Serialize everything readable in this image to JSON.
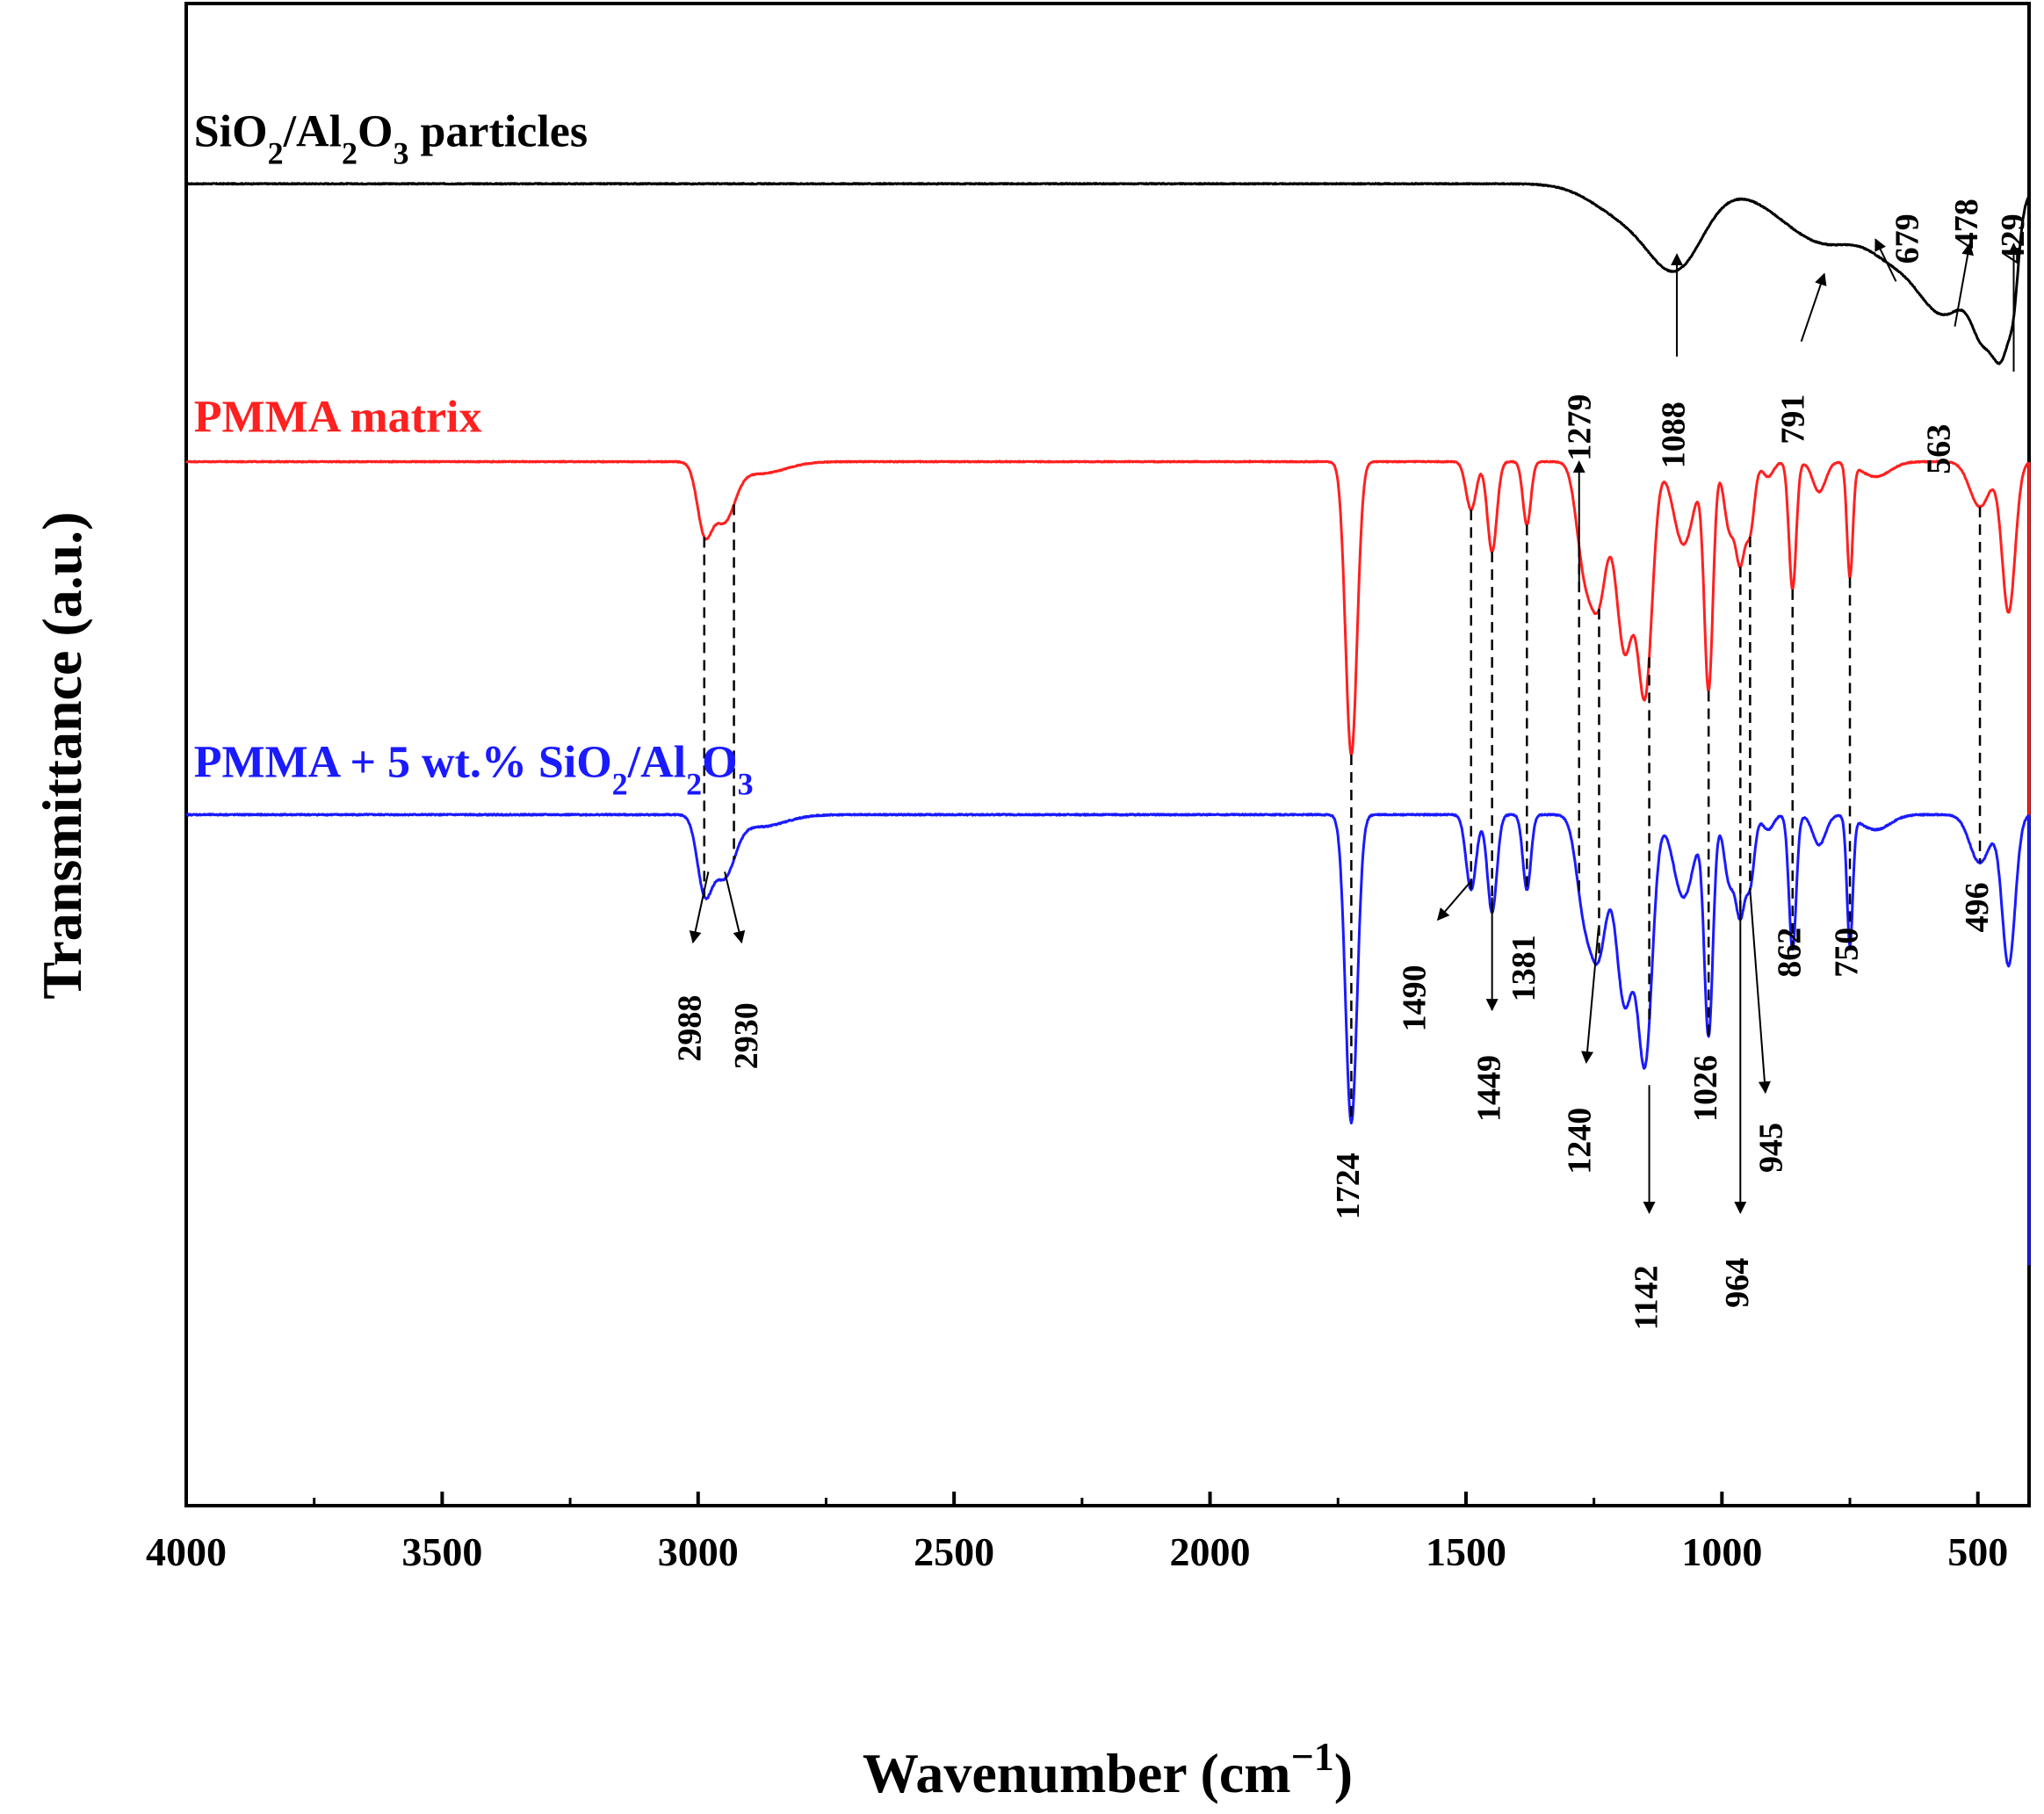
{
  "chart_data": {
    "type": "line",
    "xlabel_main": "Wavenumber (cm",
    "xlabel_sup": "−1",
    "xlabel_close": ")",
    "ylabel": "Transmittance (a.u.)",
    "xlim": [
      4000,
      400
    ],
    "ylim": [
      0,
      100
    ],
    "x_ticks": [
      4000,
      3500,
      3000,
      2500,
      2000,
      1500,
      1000,
      500
    ],
    "x_minor_ticks": [
      3750,
      3250,
      2750,
      2250,
      1750,
      1250,
      750
    ],
    "y_ticks_visible": false,
    "grid": false,
    "series": [
      {
        "key": "sio2",
        "color": "#000000",
        "label_parts": [
          {
            "t": "SiO"
          },
          {
            "t": "2",
            "sub": true
          },
          {
            "t": "/Al"
          },
          {
            "t": "2",
            "sub": true
          },
          {
            "t": "O"
          },
          {
            "t": "3",
            "sub": true
          },
          {
            "t": " particles"
          }
        ],
        "label_anchor": [
          3985,
          90.5
        ],
        "baseline": 88,
        "noise": 0.06,
        "bands": [
          {
            "x": 1088,
            "d": 5.2,
            "w": 75
          },
          {
            "x": 1190,
            "d": 2.0,
            "w": 90
          },
          {
            "x": 791,
            "d": 4.0,
            "w": 130
          },
          {
            "x": 679,
            "d": 1.4,
            "w": 55
          },
          {
            "x": 563,
            "d": 8.5,
            "w": 95
          },
          {
            "x": 490,
            "d": 5.0,
            "w": 30
          },
          {
            "x": 450,
            "d": 8.5,
            "w": 28
          },
          {
            "x": 429,
            "d": 2.5,
            "w": 12
          }
        ]
      },
      {
        "key": "pmma",
        "color": "#ff2020",
        "label_parts": [
          {
            "t": "PMMA matrix"
          }
        ],
        "label_anchor": [
          3985,
          71.5
        ],
        "baseline": 69.5,
        "noise": 0.06,
        "bands": [
          {
            "x": 2988,
            "d": 4.2,
            "w": 20
          },
          {
            "x": 2950,
            "d": 3.7,
            "w": 30
          },
          {
            "x": 2880,
            "d": 0.8,
            "w": 70
          },
          {
            "x": 1724,
            "d": 19.5,
            "w": 16
          },
          {
            "x": 1490,
            "d": 3.2,
            "w": 14
          },
          {
            "x": 1449,
            "d": 6.0,
            "w": 13
          },
          {
            "x": 1381,
            "d": 4.2,
            "w": 11
          },
          {
            "x": 1269,
            "d": 6.5,
            "w": 22
          },
          {
            "x": 1240,
            "d": 8.5,
            "w": 22
          },
          {
            "x": 1190,
            "d": 12.5,
            "w": 24
          },
          {
            "x": 1150,
            "d": 15.0,
            "w": 20
          },
          {
            "x": 1075,
            "d": 5.5,
            "w": 28
          },
          {
            "x": 1026,
            "d": 15.0,
            "w": 12
          },
          {
            "x": 985,
            "d": 4.5,
            "w": 15
          },
          {
            "x": 964,
            "d": 6.0,
            "w": 12
          },
          {
            "x": 945,
            "d": 4.5,
            "w": 12
          },
          {
            "x": 910,
            "d": 1.0,
            "w": 15
          },
          {
            "x": 862,
            "d": 8.5,
            "w": 10
          },
          {
            "x": 810,
            "d": 2.0,
            "w": 18
          },
          {
            "x": 750,
            "d": 7.5,
            "w": 8
          },
          {
            "x": 700,
            "d": 1.0,
            "w": 40
          },
          {
            "x": 496,
            "d": 3.0,
            "w": 28
          },
          {
            "x": 440,
            "d": 10.0,
            "w": 18
          }
        ]
      },
      {
        "key": "composite",
        "color": "#1a1aff",
        "label_parts": [
          {
            "t": "PMMA + 5 wt.% SiO"
          },
          {
            "t": "2",
            "sub": true
          },
          {
            "t": "/Al"
          },
          {
            "t": "2",
            "sub": true
          },
          {
            "t": "O"
          },
          {
            "t": "3",
            "sub": true
          }
        ],
        "label_anchor": [
          3985,
          48.5
        ],
        "baseline": 46,
        "noise": 0.08,
        "bands": [
          {
            "x": 2988,
            "d": 4.6,
            "w": 20
          },
          {
            "x": 2950,
            "d": 3.9,
            "w": 30
          },
          {
            "x": 2880,
            "d": 0.8,
            "w": 70
          },
          {
            "x": 1724,
            "d": 20.5,
            "w": 16
          },
          {
            "x": 1490,
            "d": 5.0,
            "w": 14
          },
          {
            "x": 1449,
            "d": 6.5,
            "w": 13
          },
          {
            "x": 1381,
            "d": 5.0,
            "w": 11
          },
          {
            "x": 1269,
            "d": 6.0,
            "w": 22
          },
          {
            "x": 1240,
            "d": 8.5,
            "w": 22
          },
          {
            "x": 1190,
            "d": 12.5,
            "w": 24
          },
          {
            "x": 1150,
            "d": 16.0,
            "w": 20
          },
          {
            "x": 1075,
            "d": 5.5,
            "w": 28
          },
          {
            "x": 1026,
            "d": 14.5,
            "w": 12
          },
          {
            "x": 985,
            "d": 4.5,
            "w": 15
          },
          {
            "x": 964,
            "d": 6.0,
            "w": 12
          },
          {
            "x": 945,
            "d": 4.5,
            "w": 12
          },
          {
            "x": 910,
            "d": 1.0,
            "w": 15
          },
          {
            "x": 862,
            "d": 9.0,
            "w": 10
          },
          {
            "x": 810,
            "d": 2.0,
            "w": 18
          },
          {
            "x": 750,
            "d": 8.5,
            "w": 8
          },
          {
            "x": 700,
            "d": 1.0,
            "w": 40
          },
          {
            "x": 496,
            "d": 3.2,
            "w": 28
          },
          {
            "x": 440,
            "d": 10.0,
            "w": 18
          }
        ]
      }
    ],
    "guide_lines": [
      2988,
      2930,
      1724,
      1490,
      1449,
      1381,
      1279,
      1240,
      1142,
      1026,
      964,
      945,
      862,
      750,
      496
    ],
    "annotations": [
      {
        "text": "1088",
        "series": "sio2",
        "tip": [
          1088,
          83.3
        ],
        "tail": [
          1088,
          76.5
        ],
        "label_pos": [
          1088,
          73.5
        ]
      },
      {
        "text": "791",
        "series": "sio2",
        "tip": [
          800,
          82.0
        ],
        "tail": [
          845,
          77.5
        ],
        "label_pos": [
          855,
          74.0
        ]
      },
      {
        "text": "679",
        "series": "sio2",
        "tip": [
          700,
          84.3
        ],
        "tail": [
          660,
          81.5
        ],
        "label_pos": [
          632,
          86.0
        ]
      },
      {
        "text": "478",
        "series": "sio2",
        "tip": [
          516,
          84.0
        ],
        "tail": [
          545,
          78.5
        ],
        "label_pos": [
          516,
          87.0
        ]
      },
      {
        "text": "429",
        "series": "sio2",
        "tip": [
          430,
          84.0
        ],
        "tail": [
          430,
          75.5
        ],
        "label_pos": [
          425,
          86.0
        ]
      },
      {
        "text": "563",
        "series": "sio2",
        "label_pos": [
          570,
          72.0
        ]
      },
      {
        "text": "1279",
        "series": "pmma",
        "tip": [
          1279,
          69.5
        ],
        "tail": [
          1279,
          61.0
        ],
        "label_pos": [
          1272,
          74.0
        ]
      },
      {
        "text": "2988",
        "series": "composite",
        "tip": [
          3010,
          37.5
        ],
        "tail": [
          2980,
          42.2
        ],
        "label_pos": [
          3010,
          34.0
        ]
      },
      {
        "text": "2930",
        "series": "composite",
        "tip": [
          2915,
          37.5
        ],
        "tail": [
          2948,
          42.2
        ],
        "label_pos": [
          2900,
          33.5
        ]
      },
      {
        "text": "1490",
        "series": "composite",
        "tip": [
          1555,
          39.0
        ],
        "tail": [
          1492,
          41.5
        ],
        "label_pos": [
          1595,
          36.0
        ]
      },
      {
        "text": "1449",
        "series": "composite",
        "tip": [
          1449,
          33.0
        ],
        "tail": [
          1449,
          40.5
        ],
        "label_pos": [
          1449,
          30.0
        ]
      },
      {
        "text": "1381",
        "series": "composite",
        "label_pos": [
          1381,
          38.0
        ]
      },
      {
        "text": "1240",
        "series": "composite",
        "tip": [
          1265,
          29.5
        ],
        "tail": [
          1241,
          38.5
        ],
        "label_pos": [
          1272,
          26.5
        ]
      },
      {
        "text": "1142",
        "series": "composite",
        "tip": [
          1142,
          19.5
        ],
        "tail": [
          1142,
          28.0
        ],
        "label_pos": [
          1142,
          16.0
        ]
      },
      {
        "text": "1026",
        "series": "composite",
        "label_pos": [
          1026,
          30.0
        ]
      },
      {
        "text": "964",
        "series": "composite",
        "tip": [
          964,
          19.5
        ],
        "tail": [
          964,
          41.0
        ],
        "label_pos": [
          964,
          16.5
        ]
      },
      {
        "text": "945",
        "series": "composite",
        "tip": [
          915,
          27.5
        ],
        "tail": [
          945,
          41.0
        ],
        "label_pos": [
          898,
          25.5
        ]
      },
      {
        "text": "862",
        "series": "composite",
        "label_pos": [
          862,
          38.5
        ]
      },
      {
        "text": "750",
        "series": "composite",
        "label_pos": [
          750,
          38.5
        ]
      },
      {
        "text": "496",
        "series": "composite",
        "label_pos": [
          496,
          41.5
        ]
      },
      {
        "text": "1724",
        "series": "composite",
        "label_pos": [
          1724,
          23.5
        ]
      }
    ]
  }
}
